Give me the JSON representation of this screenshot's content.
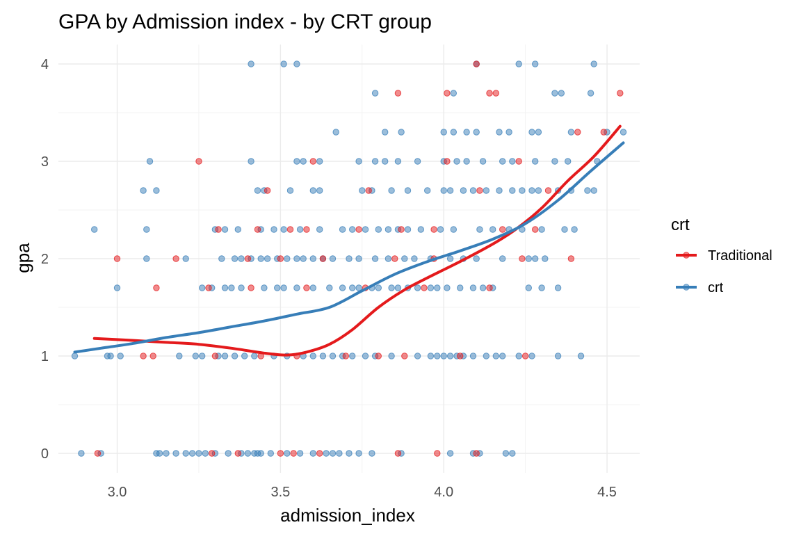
{
  "chart_data": {
    "type": "scatter",
    "title": "GPA by Admission index - by CRT group",
    "xlabel": "admission_index",
    "ylabel": "gpa",
    "xlim": [
      2.82,
      4.6
    ],
    "ylim": [
      -0.2,
      4.2
    ],
    "x_ticks": [
      3.0,
      3.5,
      4.0,
      4.5
    ],
    "x_tick_labels": [
      "3.0",
      "3.5",
      "4.0",
      "4.5"
    ],
    "y_ticks": [
      0,
      1,
      2,
      3,
      4
    ],
    "y_tick_labels": [
      "0",
      "1",
      "2",
      "3",
      "4"
    ],
    "grid": true,
    "legend": {
      "title": "crt",
      "position": "right"
    },
    "series": [
      {
        "name": "Traditional",
        "color": "#e41a1c",
        "points": [
          [
            2.94,
            0
          ],
          [
            3.29,
            0
          ],
          [
            3.37,
            0
          ],
          [
            3.5,
            0
          ],
          [
            3.54,
            0
          ],
          [
            3.62,
            0
          ],
          [
            3.86,
            0
          ],
          [
            3.98,
            0
          ],
          [
            4.1,
            0
          ],
          [
            3.08,
            1
          ],
          [
            3.11,
            1
          ],
          [
            3.3,
            1
          ],
          [
            3.44,
            1
          ],
          [
            3.55,
            1
          ],
          [
            3.7,
            1
          ],
          [
            3.8,
            1
          ],
          [
            3.88,
            1
          ],
          [
            4.05,
            1
          ],
          [
            4.25,
            1
          ],
          [
            3.12,
            1.7
          ],
          [
            3.28,
            1.7
          ],
          [
            3.41,
            1.7
          ],
          [
            3.58,
            1.7
          ],
          [
            3.76,
            1.7
          ],
          [
            3.94,
            1.7
          ],
          [
            4.14,
            1.7
          ],
          [
            3.0,
            2
          ],
          [
            3.18,
            2
          ],
          [
            3.4,
            2
          ],
          [
            3.5,
            2
          ],
          [
            3.63,
            2
          ],
          [
            3.85,
            2
          ],
          [
            3.97,
            2
          ],
          [
            4.24,
            2
          ],
          [
            4.39,
            2
          ],
          [
            3.31,
            2.3
          ],
          [
            3.43,
            2.3
          ],
          [
            3.53,
            2.3
          ],
          [
            3.58,
            2.3
          ],
          [
            3.74,
            2.3
          ],
          [
            3.87,
            2.3
          ],
          [
            3.97,
            2.3
          ],
          [
            4.18,
            2.3
          ],
          [
            4.28,
            2.3
          ],
          [
            3.25,
            3
          ],
          [
            3.6,
            3
          ],
          [
            4.01,
            3
          ],
          [
            4.23,
            3
          ],
          [
            3.46,
            2.7
          ],
          [
            3.77,
            2.7
          ],
          [
            4.11,
            2.7
          ],
          [
            4.32,
            2.7
          ],
          [
            3.86,
            3.7
          ],
          [
            4.01,
            3.7
          ],
          [
            4.14,
            3.7
          ],
          [
            4.16,
            3.7
          ],
          [
            4.54,
            3.7
          ],
          [
            4.41,
            3.3
          ],
          [
            4.49,
            3.3
          ],
          [
            4.1,
            4.0
          ]
        ],
        "smooth": [
          [
            2.93,
            1.18
          ],
          [
            3.05,
            1.16
          ],
          [
            3.15,
            1.14
          ],
          [
            3.25,
            1.12
          ],
          [
            3.35,
            1.08
          ],
          [
            3.45,
            1.03
          ],
          [
            3.52,
            1.01
          ],
          [
            3.58,
            1.04
          ],
          [
            3.65,
            1.12
          ],
          [
            3.72,
            1.27
          ],
          [
            3.8,
            1.5
          ],
          [
            3.88,
            1.68
          ],
          [
            3.96,
            1.82
          ],
          [
            4.05,
            1.97
          ],
          [
            4.15,
            2.15
          ],
          [
            4.22,
            2.3
          ],
          [
            4.3,
            2.52
          ],
          [
            4.38,
            2.8
          ],
          [
            4.46,
            3.05
          ],
          [
            4.54,
            3.36
          ]
        ]
      },
      {
        "name": "crt",
        "color": "#377eb8",
        "points": [
          [
            2.89,
            0
          ],
          [
            2.95,
            0
          ],
          [
            3.12,
            0
          ],
          [
            3.13,
            0
          ],
          [
            3.15,
            0
          ],
          [
            3.18,
            0
          ],
          [
            3.21,
            0
          ],
          [
            3.23,
            0
          ],
          [
            3.25,
            0
          ],
          [
            3.27,
            0
          ],
          [
            3.3,
            0
          ],
          [
            3.34,
            0
          ],
          [
            3.38,
            0
          ],
          [
            3.4,
            0
          ],
          [
            3.42,
            0
          ],
          [
            3.43,
            0
          ],
          [
            3.44,
            0
          ],
          [
            3.47,
            0
          ],
          [
            3.52,
            0
          ],
          [
            3.56,
            0
          ],
          [
            3.6,
            0
          ],
          [
            3.64,
            0
          ],
          [
            3.66,
            0
          ],
          [
            3.68,
            0
          ],
          [
            3.71,
            0
          ],
          [
            3.74,
            0
          ],
          [
            3.78,
            0
          ],
          [
            3.87,
            0
          ],
          [
            4.02,
            0
          ],
          [
            4.09,
            0
          ],
          [
            4.11,
            0
          ],
          [
            4.19,
            0
          ],
          [
            4.21,
            0
          ],
          [
            2.87,
            1
          ],
          [
            2.97,
            1
          ],
          [
            2.98,
            1
          ],
          [
            3.01,
            1
          ],
          [
            3.19,
            1
          ],
          [
            3.24,
            1
          ],
          [
            3.26,
            1
          ],
          [
            3.31,
            1
          ],
          [
            3.33,
            1
          ],
          [
            3.36,
            1
          ],
          [
            3.39,
            1
          ],
          [
            3.42,
            1
          ],
          [
            3.48,
            1
          ],
          [
            3.52,
            1
          ],
          [
            3.57,
            1
          ],
          [
            3.6,
            1
          ],
          [
            3.63,
            1
          ],
          [
            3.66,
            1
          ],
          [
            3.69,
            1
          ],
          [
            3.72,
            1
          ],
          [
            3.76,
            1
          ],
          [
            3.79,
            1
          ],
          [
            3.84,
            1
          ],
          [
            3.92,
            1
          ],
          [
            3.96,
            1
          ],
          [
            3.98,
            1
          ],
          [
            4.0,
            1
          ],
          [
            4.02,
            1
          ],
          [
            4.04,
            1
          ],
          [
            4.06,
            1
          ],
          [
            4.09,
            1
          ],
          [
            4.13,
            1
          ],
          [
            4.16,
            1
          ],
          [
            4.18,
            1
          ],
          [
            4.23,
            1
          ],
          [
            4.27,
            1
          ],
          [
            4.35,
            1
          ],
          [
            4.42,
            1
          ],
          [
            3.0,
            1.7
          ],
          [
            3.26,
            1.7
          ],
          [
            3.29,
            1.7
          ],
          [
            3.33,
            1.7
          ],
          [
            3.35,
            1.7
          ],
          [
            3.38,
            1.7
          ],
          [
            3.45,
            1.7
          ],
          [
            3.49,
            1.7
          ],
          [
            3.51,
            1.7
          ],
          [
            3.55,
            1.7
          ],
          [
            3.6,
            1.7
          ],
          [
            3.65,
            1.7
          ],
          [
            3.69,
            1.7
          ],
          [
            3.72,
            1.7
          ],
          [
            3.74,
            1.7
          ],
          [
            3.78,
            1.7
          ],
          [
            3.8,
            1.7
          ],
          [
            3.84,
            1.7
          ],
          [
            3.86,
            1.7
          ],
          [
            3.89,
            1.7
          ],
          [
            3.92,
            1.7
          ],
          [
            3.96,
            1.7
          ],
          [
            3.98,
            1.7
          ],
          [
            4.01,
            1.7
          ],
          [
            4.05,
            1.7
          ],
          [
            4.09,
            1.7
          ],
          [
            4.12,
            1.7
          ],
          [
            4.15,
            1.7
          ],
          [
            4.26,
            1.7
          ],
          [
            4.3,
            1.7
          ],
          [
            4.35,
            1.7
          ],
          [
            3.09,
            2
          ],
          [
            3.21,
            2
          ],
          [
            3.32,
            2
          ],
          [
            3.36,
            2
          ],
          [
            3.38,
            2
          ],
          [
            3.41,
            2
          ],
          [
            3.44,
            2
          ],
          [
            3.46,
            2
          ],
          [
            3.49,
            2
          ],
          [
            3.52,
            2
          ],
          [
            3.55,
            2
          ],
          [
            3.57,
            2
          ],
          [
            3.6,
            2
          ],
          [
            3.63,
            2
          ],
          [
            3.66,
            2
          ],
          [
            3.71,
            2
          ],
          [
            3.74,
            2
          ],
          [
            3.79,
            2
          ],
          [
            3.83,
            2
          ],
          [
            3.88,
            2
          ],
          [
            3.91,
            2
          ],
          [
            3.96,
            2
          ],
          [
            4.02,
            2
          ],
          [
            4.06,
            2
          ],
          [
            4.1,
            2
          ],
          [
            4.18,
            2
          ],
          [
            4.26,
            2
          ],
          [
            4.28,
            2
          ],
          [
            4.31,
            2
          ],
          [
            2.93,
            2.3
          ],
          [
            3.09,
            2.3
          ],
          [
            3.3,
            2.3
          ],
          [
            3.33,
            2.3
          ],
          [
            3.37,
            2.3
          ],
          [
            3.44,
            2.3
          ],
          [
            3.48,
            2.3
          ],
          [
            3.51,
            2.3
          ],
          [
            3.56,
            2.3
          ],
          [
            3.62,
            2.3
          ],
          [
            3.69,
            2.3
          ],
          [
            3.72,
            2.3
          ],
          [
            3.76,
            2.3
          ],
          [
            3.8,
            2.3
          ],
          [
            3.83,
            2.3
          ],
          [
            3.86,
            2.3
          ],
          [
            3.89,
            2.3
          ],
          [
            3.93,
            2.3
          ],
          [
            3.99,
            2.3
          ],
          [
            4.03,
            2.3
          ],
          [
            4.11,
            2.3
          ],
          [
            4.15,
            2.3
          ],
          [
            4.2,
            2.3
          ],
          [
            4.24,
            2.3
          ],
          [
            4.3,
            2.3
          ],
          [
            4.37,
            2.3
          ],
          [
            4.4,
            2.3
          ],
          [
            3.08,
            2.7
          ],
          [
            3.12,
            2.7
          ],
          [
            3.43,
            2.7
          ],
          [
            3.45,
            2.7
          ],
          [
            3.53,
            2.7
          ],
          [
            3.6,
            2.7
          ],
          [
            3.62,
            2.7
          ],
          [
            3.75,
            2.7
          ],
          [
            3.78,
            2.7
          ],
          [
            3.84,
            2.7
          ],
          [
            3.89,
            2.7
          ],
          [
            3.95,
            2.7
          ],
          [
            4.0,
            2.7
          ],
          [
            4.02,
            2.7
          ],
          [
            4.06,
            2.7
          ],
          [
            4.09,
            2.7
          ],
          [
            4.13,
            2.7
          ],
          [
            4.17,
            2.7
          ],
          [
            4.21,
            2.7
          ],
          [
            4.24,
            2.7
          ],
          [
            4.27,
            2.7
          ],
          [
            4.29,
            2.7
          ],
          [
            4.35,
            2.7
          ],
          [
            4.39,
            2.7
          ],
          [
            4.44,
            2.7
          ],
          [
            4.46,
            2.7
          ],
          [
            3.1,
            3
          ],
          [
            3.41,
            3
          ],
          [
            3.55,
            3
          ],
          [
            3.57,
            3
          ],
          [
            3.62,
            3
          ],
          [
            3.74,
            3
          ],
          [
            3.79,
            3
          ],
          [
            3.82,
            3
          ],
          [
            3.86,
            3
          ],
          [
            3.92,
            3
          ],
          [
            4.0,
            3
          ],
          [
            4.04,
            3
          ],
          [
            4.07,
            3
          ],
          [
            4.12,
            3
          ],
          [
            4.18,
            3
          ],
          [
            4.21,
            3
          ],
          [
            4.28,
            3
          ],
          [
            4.34,
            3
          ],
          [
            4.38,
            3
          ],
          [
            4.47,
            3
          ],
          [
            3.67,
            3.3
          ],
          [
            3.82,
            3.3
          ],
          [
            3.87,
            3.3
          ],
          [
            4.0,
            3.3
          ],
          [
            4.03,
            3.3
          ],
          [
            4.07,
            3.3
          ],
          [
            4.1,
            3.3
          ],
          [
            4.17,
            3.3
          ],
          [
            4.2,
            3.3
          ],
          [
            4.27,
            3.3
          ],
          [
            4.29,
            3.3
          ],
          [
            4.39,
            3.3
          ],
          [
            4.5,
            3.3
          ],
          [
            4.55,
            3.3
          ],
          [
            3.79,
            3.7
          ],
          [
            4.03,
            3.7
          ],
          [
            4.34,
            3.7
          ],
          [
            4.36,
            3.7
          ],
          [
            4.45,
            3.7
          ],
          [
            3.41,
            4
          ],
          [
            3.51,
            4
          ],
          [
            3.55,
            4
          ],
          [
            4.1,
            4
          ],
          [
            4.23,
            4
          ],
          [
            4.28,
            4
          ],
          [
            4.46,
            4
          ]
        ],
        "smooth": [
          [
            2.87,
            1.04
          ],
          [
            2.95,
            1.08
          ],
          [
            3.05,
            1.13
          ],
          [
            3.15,
            1.19
          ],
          [
            3.25,
            1.24
          ],
          [
            3.35,
            1.3
          ],
          [
            3.45,
            1.36
          ],
          [
            3.55,
            1.43
          ],
          [
            3.65,
            1.5
          ],
          [
            3.75,
            1.67
          ],
          [
            3.85,
            1.84
          ],
          [
            3.95,
            1.97
          ],
          [
            4.05,
            2.08
          ],
          [
            4.15,
            2.2
          ],
          [
            4.25,
            2.36
          ],
          [
            4.35,
            2.6
          ],
          [
            4.45,
            2.9
          ],
          [
            4.55,
            3.19
          ]
        ]
      }
    ]
  }
}
